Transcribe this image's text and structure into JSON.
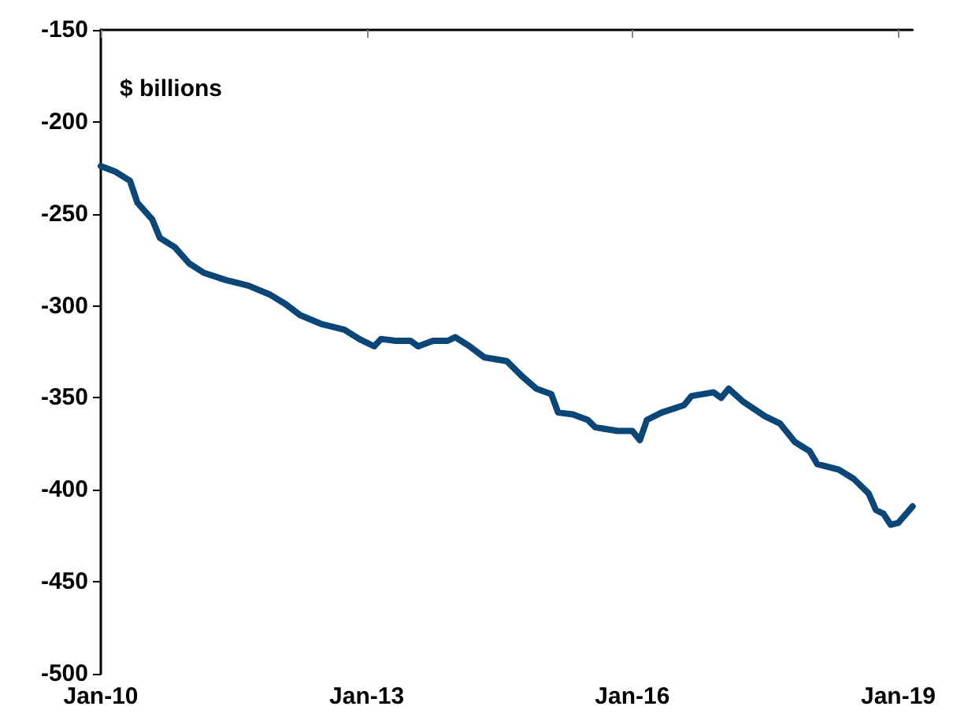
{
  "chart_data": {
    "type": "line",
    "ylabel": "$ billions",
    "x": [
      "2010-01",
      "2010-03",
      "2010-05",
      "2010-06",
      "2010-08",
      "2010-09",
      "2010-11",
      "2011-01",
      "2011-03",
      "2011-06",
      "2011-09",
      "2011-12",
      "2012-02",
      "2012-04",
      "2012-07",
      "2012-10",
      "2012-12",
      "2013-02",
      "2013-03",
      "2013-05",
      "2013-07",
      "2013-08",
      "2013-10",
      "2013-12",
      "2014-01",
      "2014-03",
      "2014-05",
      "2014-08",
      "2014-10",
      "2014-12",
      "2015-02",
      "2015-03",
      "2015-05",
      "2015-07",
      "2015-08",
      "2015-11",
      "2016-01",
      "2016-02",
      "2016-03",
      "2016-05",
      "2016-08",
      "2016-09",
      "2016-12",
      "2017-01",
      "2017-02",
      "2017-04",
      "2017-07",
      "2017-09",
      "2017-11",
      "2018-01",
      "2018-02",
      "2018-05",
      "2018-07",
      "2018-09",
      "2018-10",
      "2018-11",
      "2018-12",
      "2019-01",
      "2019-03"
    ],
    "series": [
      {
        "color": "#0b4678",
        "values": [
          -224,
          -227,
          -232,
          -244,
          -253,
          -263,
          -268,
          -277,
          -282,
          -286,
          -289,
          -294,
          -299,
          -305,
          -310,
          -313,
          -318,
          -322,
          -318,
          -319,
          -319,
          -322,
          -319,
          -319,
          -317,
          -322,
          -328,
          -330,
          -338,
          -345,
          -348,
          -358,
          -359,
          -362,
          -366,
          -368,
          -368,
          -373,
          -362,
          -358,
          -354,
          -349,
          -347,
          -350,
          -345,
          -352,
          -360,
          -364,
          -374,
          -379,
          -386,
          -389,
          -394,
          -402,
          -411,
          -413,
          -419,
          -418,
          -409
        ]
      }
    ],
    "xlim": [
      "2010-01",
      "2019-03"
    ],
    "xticks": [
      {
        "value": "2010-01",
        "label": "Jan-10"
      },
      {
        "value": "2013-01",
        "label": "Jan-13"
      },
      {
        "value": "2016-01",
        "label": "Jan-16"
      },
      {
        "value": "2019-01",
        "label": "Jan-19"
      }
    ],
    "ylim": [
      -500,
      -150
    ],
    "yticks": [
      -500,
      -450,
      -400,
      -350,
      -300,
      -250,
      -200,
      -150
    ],
    "grid": false,
    "marker": "none",
    "line_style": "solid"
  }
}
